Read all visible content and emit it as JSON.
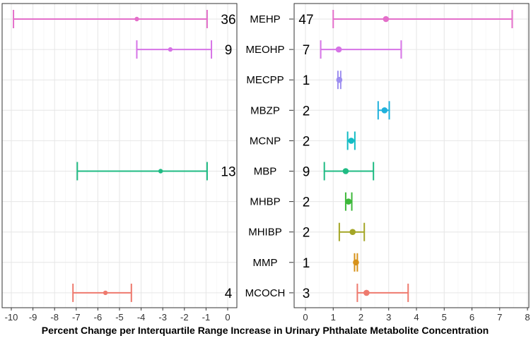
{
  "chart_data": {
    "type": "forest",
    "xlabel": "Percent Change per Interquartile Range Increase in Urinary Phthalate Metabolite Concentration",
    "metabolites": [
      "MEHP",
      "MEOHP",
      "MECPP",
      "MBZP",
      "MCNP",
      "MBP",
      "MHBP",
      "MHIBP",
      "MMP",
      "MCOCH"
    ],
    "colors": {
      "MEHP": "#e46fca",
      "MEOHP": "#d673e6",
      "MECPP": "#9d8ef0",
      "MBZP": "#1fb1dc",
      "MCNP": "#11bcc4",
      "MBP": "#1fbb83",
      "MHBP": "#3db83a",
      "MHIBP": "#a4a626",
      "MMP": "#d7921a",
      "MCOCH": "#ee7a6e"
    },
    "panels": [
      {
        "name": "negative",
        "xlim": [
          -10,
          0
        ],
        "ticks": [
          "-10",
          "-9",
          "-8",
          "-7",
          "-6",
          "-5",
          "-4",
          "-3",
          "-2",
          "-1",
          "0"
        ],
        "estimates": [
          {
            "metabolite": "MEHP",
            "n": "36",
            "estimate": -4.2,
            "lower": -9.9,
            "upper": -0.95
          },
          {
            "metabolite": "MEOHP",
            "n": "9",
            "estimate": -2.65,
            "lower": -4.2,
            "upper": -0.75
          },
          {
            "metabolite": "MBP",
            "n": "13",
            "estimate": -3.1,
            "lower": -6.95,
            "upper": -0.95
          },
          {
            "metabolite": "MCOCH",
            "n": "4",
            "estimate": -5.65,
            "lower": -7.15,
            "upper": -4.45
          }
        ]
      },
      {
        "name": "positive",
        "xlim": [
          0,
          8
        ],
        "ticks": [
          "0",
          "1",
          "2",
          "3",
          "4",
          "5",
          "6",
          "7",
          "8"
        ],
        "estimates": [
          {
            "metabolite": "MEHP",
            "n": "47",
            "estimate": 2.9,
            "lower": 1.0,
            "upper": 7.45
          },
          {
            "metabolite": "MEOHP",
            "n": "7",
            "estimate": 1.2,
            "lower": 0.55,
            "upper": 3.45
          },
          {
            "metabolite": "MECPP",
            "n": "1",
            "estimate": 1.22,
            "lower": 1.17,
            "upper": 1.27
          },
          {
            "metabolite": "MBZP",
            "n": "2",
            "estimate": 2.85,
            "lower": 2.62,
            "upper": 3.02
          },
          {
            "metabolite": "MCNP",
            "n": "2",
            "estimate": 1.65,
            "lower": 1.52,
            "upper": 1.78
          },
          {
            "metabolite": "MBP",
            "n": "9",
            "estimate": 1.45,
            "lower": 0.68,
            "upper": 2.45
          },
          {
            "metabolite": "MHBP",
            "n": "2",
            "estimate": 1.55,
            "lower": 1.45,
            "upper": 1.67
          },
          {
            "metabolite": "MHIBP",
            "n": "2",
            "estimate": 1.7,
            "lower": 1.22,
            "upper": 2.12
          },
          {
            "metabolite": "MMP",
            "n": "1",
            "estimate": 1.82,
            "lower": 1.77,
            "upper": 1.87
          },
          {
            "metabolite": "MCOCH",
            "n": "3",
            "estimate": 2.2,
            "lower": 1.87,
            "upper": 3.7
          }
        ]
      }
    ]
  }
}
